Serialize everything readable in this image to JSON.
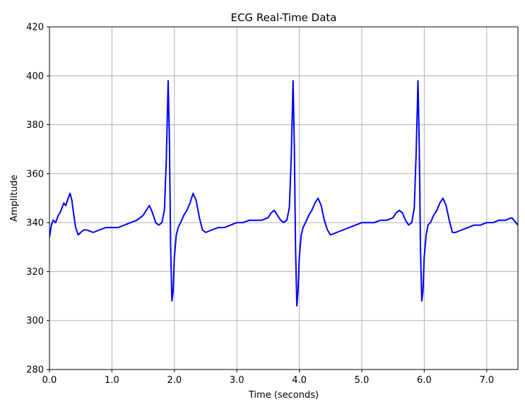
{
  "chart_data": {
    "type": "line",
    "title": "ECG Real-Time Data",
    "xlabel": "Time (seconds)",
    "ylabel": "Amplitude",
    "xlim": [
      0,
      7.5
    ],
    "ylim": [
      280,
      420
    ],
    "xticks": [
      "0.0",
      "1.0",
      "2.0",
      "3.0",
      "4.0",
      "5.0",
      "6.0",
      "7.0"
    ],
    "xtick_values": [
      0,
      1,
      2,
      3,
      4,
      5,
      6,
      7
    ],
    "yticks": [
      "280",
      "300",
      "320",
      "340",
      "360",
      "380",
      "400",
      "420"
    ],
    "ytick_values": [
      280,
      300,
      320,
      340,
      360,
      380,
      400,
      420
    ],
    "grid": true,
    "series": [
      {
        "color": "#0000ff",
        "x": [
          0.0,
          0.03,
          0.06,
          0.1,
          0.14,
          0.17,
          0.2,
          0.23,
          0.26,
          0.3,
          0.33,
          0.36,
          0.39,
          0.42,
          0.46,
          0.5,
          0.55,
          0.6,
          0.7,
          0.8,
          0.9,
          1.0,
          1.1,
          1.2,
          1.3,
          1.4,
          1.5,
          1.55,
          1.6,
          1.65,
          1.7,
          1.75,
          1.8,
          1.84,
          1.87,
          1.9,
          1.92,
          1.94,
          1.96,
          1.98,
          2.0,
          2.03,
          2.06,
          2.1,
          2.15,
          2.2,
          2.25,
          2.3,
          2.35,
          2.4,
          2.45,
          2.5,
          2.6,
          2.7,
          2.8,
          2.9,
          3.0,
          3.1,
          3.2,
          3.3,
          3.4,
          3.5,
          3.55,
          3.6,
          3.65,
          3.7,
          3.75,
          3.8,
          3.84,
          3.87,
          3.9,
          3.92,
          3.94,
          3.96,
          3.98,
          4.0,
          4.03,
          4.06,
          4.1,
          4.15,
          4.2,
          4.25,
          4.3,
          4.35,
          4.4,
          4.45,
          4.5,
          4.6,
          4.7,
          4.8,
          4.9,
          5.0,
          5.1,
          5.2,
          5.3,
          5.4,
          5.5,
          5.55,
          5.6,
          5.65,
          5.7,
          5.75,
          5.8,
          5.84,
          5.87,
          5.9,
          5.92,
          5.94,
          5.96,
          5.98,
          6.0,
          6.03,
          6.06,
          6.1,
          6.15,
          6.2,
          6.25,
          6.3,
          6.35,
          6.4,
          6.45,
          6.5,
          6.6,
          6.7,
          6.8,
          6.9,
          7.0,
          7.1,
          7.2,
          7.3,
          7.4,
          7.5
        ],
        "y": [
          334,
          339,
          341,
          340,
          343,
          344,
          346,
          348,
          347,
          350,
          352,
          349,
          343,
          338,
          335,
          336,
          337,
          337,
          336,
          337,
          338,
          338,
          338,
          339,
          340,
          341,
          343,
          345,
          347,
          344,
          340,
          339,
          340,
          345,
          365,
          398,
          375,
          330,
          308,
          312,
          326,
          335,
          338,
          340,
          343,
          345,
          348,
          352,
          349,
          342,
          337,
          336,
          337,
          338,
          338,
          339,
          340,
          340,
          341,
          341,
          341,
          342,
          344,
          345,
          343,
          341,
          340,
          341,
          346,
          366,
          398,
          372,
          329,
          306,
          312,
          326,
          335,
          338,
          340,
          343,
          345,
          348,
          350,
          347,
          341,
          337,
          335,
          336,
          337,
          338,
          339,
          340,
          340,
          340,
          341,
          341,
          342,
          344,
          345,
          344,
          341,
          339,
          340,
          346,
          368,
          398,
          372,
          329,
          308,
          312,
          326,
          335,
          339,
          340,
          343,
          345,
          348,
          350,
          347,
          341,
          336,
          336,
          337,
          338,
          339,
          339,
          340,
          340,
          341,
          341,
          342,
          339
        ]
      }
    ]
  }
}
